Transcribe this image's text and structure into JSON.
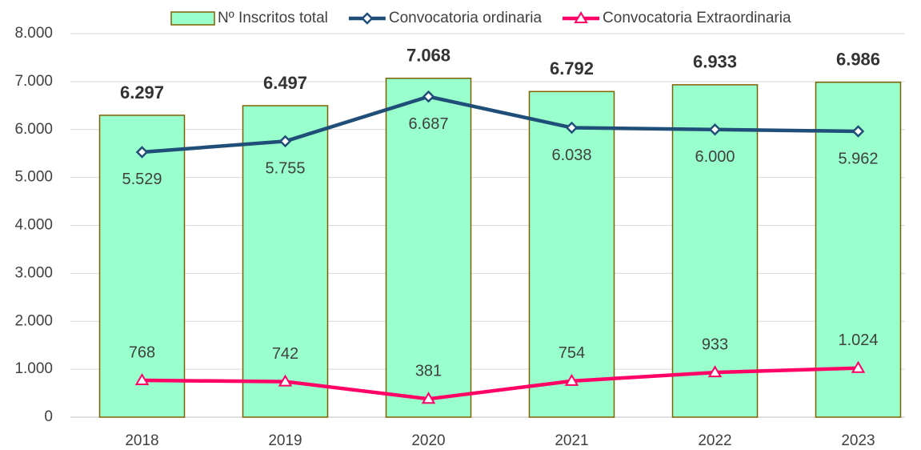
{
  "chart_data": {
    "type": "bar",
    "categories": [
      "2018",
      "2019",
      "2020",
      "2021",
      "2022",
      "2023"
    ],
    "series": [
      {
        "name": "Nº Inscritos total",
        "type": "bar",
        "color": "#99ffcc",
        "edge": "#7f6000",
        "values": [
          6297,
          6497,
          7068,
          6792,
          6933,
          6986
        ],
        "value_labels": [
          "6.297",
          "6.497",
          "7.068",
          "6.792",
          "6.933",
          "6.986"
        ]
      },
      {
        "name": "Convocatoria ordinaria",
        "type": "line",
        "color": "#1f4e79",
        "marker": "diamond",
        "values": [
          5529,
          5755,
          6687,
          6038,
          6000,
          5962
        ],
        "value_labels": [
          "5.529",
          "5.755",
          "6.687",
          "6.038",
          "6.000",
          "5.962"
        ]
      },
      {
        "name": "Convocatoria Extraordinaria",
        "type": "line",
        "color": "#ff0066",
        "marker": "triangle",
        "values": [
          768,
          742,
          381,
          754,
          933,
          1024
        ],
        "value_labels": [
          "768",
          "742",
          "381",
          "754",
          "933",
          "1.024"
        ]
      }
    ],
    "ylim": [
      0,
      8000
    ],
    "yticks": [
      0,
      {
        "value": 1000,
        "label": "1.000"
      },
      {
        "value": 2000,
        "label": "2.000"
      },
      {
        "value": 3000,
        "label": "3.000"
      },
      {
        "value": 4000,
        "label": "4.000"
      },
      {
        "value": 5000,
        "label": "5.000"
      },
      {
        "value": 6000,
        "label": "6.000"
      },
      {
        "value": 7000,
        "label": "7.000"
      },
      {
        "value": 8000,
        "label": "8.000"
      }
    ],
    "grid": true,
    "legend": "top"
  }
}
